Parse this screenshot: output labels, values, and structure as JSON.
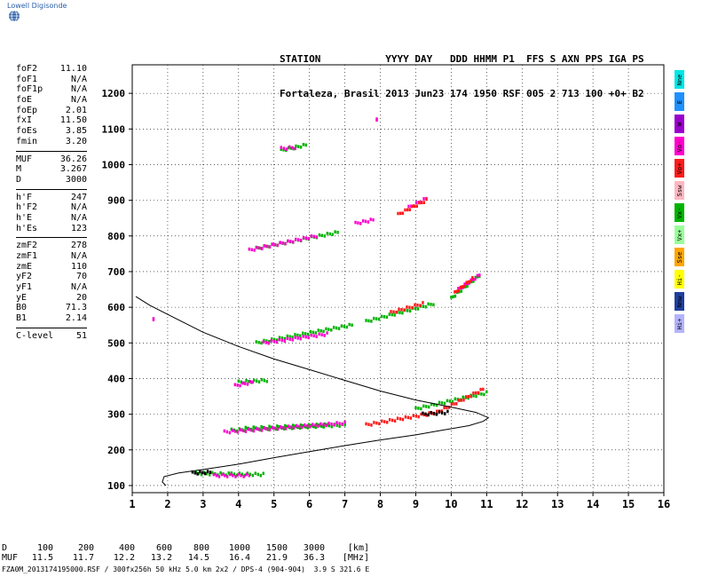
{
  "logo": {
    "text": "Lowell Digisonde"
  },
  "header": {
    "labels": [
      "STATION",
      "YYYY",
      "DAY",
      "DDD",
      "HHMM",
      "P1",
      "FFS",
      "S",
      "AXN",
      "PPS",
      "IGA",
      "PS"
    ],
    "line1": "STATION           YYYY DAY   DDD HHMM P1  FFS S AXN PPS IGA PS",
    "line2": "Fortaleza, Brasil 2013 Jun23 174 1950 RSF 005 2 713 100 +0+ B2"
  },
  "params": {
    "group1": [
      {
        "name": "foF2",
        "value": "11.10"
      },
      {
        "name": "foF1",
        "value": "N/A"
      },
      {
        "name": "foF1p",
        "value": "N/A"
      },
      {
        "name": "foE",
        "value": "N/A"
      },
      {
        "name": "foEp",
        "value": "2.01"
      },
      {
        "name": "fxI",
        "value": "11.50"
      },
      {
        "name": "foEs",
        "value": "3.85"
      },
      {
        "name": "fmin",
        "value": "3.20"
      }
    ],
    "group2": [
      {
        "name": "MUF",
        "value": "36.26"
      },
      {
        "name": "M",
        "value": "3.267"
      },
      {
        "name": "D",
        "value": "3000"
      }
    ],
    "group3": [
      {
        "name": "h'F",
        "value": "247"
      },
      {
        "name": "h'F2",
        "value": "N/A"
      },
      {
        "name": "h'E",
        "value": "N/A"
      },
      {
        "name": "h'Es",
        "value": "123"
      }
    ],
    "group4": [
      {
        "name": "zmF2",
        "value": "278"
      },
      {
        "name": "zmF1",
        "value": "N/A"
      },
      {
        "name": "zmE",
        "value": "110"
      },
      {
        "name": "yF2",
        "value": "70"
      },
      {
        "name": "yF1",
        "value": "N/A"
      },
      {
        "name": "yE",
        "value": "20"
      },
      {
        "name": "B0",
        "value": "71.3"
      },
      {
        "name": "B1",
        "value": "2.14"
      }
    ],
    "group5": [
      {
        "name": "C-level",
        "value": "51"
      }
    ]
  },
  "legend": [
    {
      "label": "Nne",
      "color": "#00e5e5"
    },
    {
      "label": "E",
      "color": "#1e90ff"
    },
    {
      "label": "W",
      "color": "#9900cc"
    },
    {
      "label": "Vo-",
      "color": "#ff00cc"
    },
    {
      "label": "Vo+",
      "color": "#ff1a1a"
    },
    {
      "label": "Ssw",
      "color": "#ffb6c1"
    },
    {
      "label": "Vx-",
      "color": "#00b300"
    },
    {
      "label": "Vx+",
      "color": "#99ff99"
    },
    {
      "label": "Sse",
      "color": "#ffa500"
    },
    {
      "label": "Hi-",
      "color": "#ffff00"
    },
    {
      "label": "Nnw",
      "color": "#1f3f9f"
    },
    {
      "label": "Hi+",
      "color": "#b3b3ff"
    }
  ],
  "footer": {
    "d_label": "D",
    "d_values": [
      "100",
      "200",
      "400",
      "600",
      "800",
      "1000",
      "1500",
      "3000"
    ],
    "d_unit": "[km]",
    "muf_label": "MUF",
    "muf_values": [
      "11.5",
      "11.7",
      "12.2",
      "13.2",
      "14.5",
      "16.4",
      "21.9",
      "36.3"
    ],
    "muf_unit": "[MHz]",
    "filename": "FZA0M_2013174195000.RSF / 300fx256h 50 kHz 5.0 km 2x2 / DPS-4 (904-904)  3.9 S 321.6 E"
  },
  "chart_data": {
    "type": "scatter",
    "x_ticks": [
      "1",
      "2",
      "3",
      "4",
      "5",
      "6",
      "7",
      "8",
      "9",
      "10",
      "11",
      "12",
      "13",
      "14",
      "15",
      "16"
    ],
    "y_ticks": [
      "100",
      "200",
      "300",
      "400",
      "500",
      "600",
      "700",
      "800",
      "900",
      "1000",
      "1100",
      "1200"
    ],
    "xlim": [
      1,
      16
    ],
    "ylim": [
      80,
      1280
    ],
    "grid": true,
    "profile": [
      [
        1.95,
        100
      ],
      [
        1.85,
        110
      ],
      [
        1.9,
        125
      ],
      [
        2.3,
        135
      ],
      [
        3.0,
        145
      ],
      [
        4.0,
        160
      ],
      [
        5.0,
        178
      ],
      [
        6.0,
        195
      ],
      [
        7.0,
        212
      ],
      [
        8.0,
        228
      ],
      [
        9.0,
        242
      ],
      [
        9.8,
        256
      ],
      [
        10.5,
        268
      ],
      [
        10.9,
        280
      ],
      [
        11.05,
        290
      ],
      [
        10.7,
        305
      ],
      [
        10.0,
        320
      ],
      [
        9.0,
        340
      ],
      [
        8.0,
        365
      ],
      [
        7.0,
        395
      ],
      [
        6.0,
        425
      ],
      [
        5.0,
        455
      ],
      [
        4.0,
        490
      ],
      [
        3.0,
        530
      ],
      [
        2.2,
        570
      ],
      [
        1.5,
        605
      ],
      [
        1.1,
        630
      ]
    ],
    "traces": [
      {
        "name": "Vx-",
        "color": "#00b300",
        "points": [
          [
            2.8,
            134,
            3.8,
            132
          ],
          [
            3.8,
            132,
            4.7,
            131
          ],
          [
            3.8,
            255,
            7.0,
            270
          ],
          [
            4.2,
            260,
            6.5,
            270
          ],
          [
            4.5,
            500,
            7.2,
            550
          ],
          [
            4.0,
            390,
            4.8,
            395
          ],
          [
            5.2,
            1040,
            5.9,
            1055
          ],
          [
            4.5,
            765,
            6.8,
            810
          ],
          [
            7.6,
            560,
            9.5,
            610
          ],
          [
            10,
            625,
            10.8,
            690
          ],
          [
            9,
            315,
            11,
            360
          ]
        ]
      },
      {
        "name": "Vo-",
        "color": "#ff00cc",
        "points": [
          [
            3.3,
            128,
            4.3,
            128
          ],
          [
            3.6,
            250,
            7.0,
            275
          ],
          [
            4.7,
            500,
            6.5,
            525
          ],
          [
            3.9,
            380,
            4.4,
            390
          ],
          [
            5.2,
            1045,
            5.6,
            1048
          ],
          [
            4.3,
            760,
            6.2,
            800
          ],
          [
            8.8,
            880,
            9.3,
            905
          ],
          [
            7.3,
            835,
            7.8,
            845
          ],
          [
            10.2,
            650,
            10.8,
            690
          ],
          [
            7.9,
            1125,
            7.9,
            1125
          ],
          [
            1.6,
            565,
            1.6,
            565
          ]
        ]
      },
      {
        "name": "Vo+",
        "color": "#ff1a1a",
        "points": [
          [
            7.6,
            270,
            9.6,
            305
          ],
          [
            9.6,
            305,
            10.9,
            370
          ],
          [
            8.3,
            585,
            9.2,
            610
          ],
          [
            8.5,
            860,
            9.3,
            900
          ],
          [
            10.1,
            640,
            10.6,
            680
          ]
        ]
      },
      {
        "name": "Other",
        "color": "#000000",
        "points": [
          [
            2.7,
            135,
            3.2,
            137
          ],
          [
            9.2,
            300,
            9.9,
            305
          ]
        ]
      }
    ]
  }
}
